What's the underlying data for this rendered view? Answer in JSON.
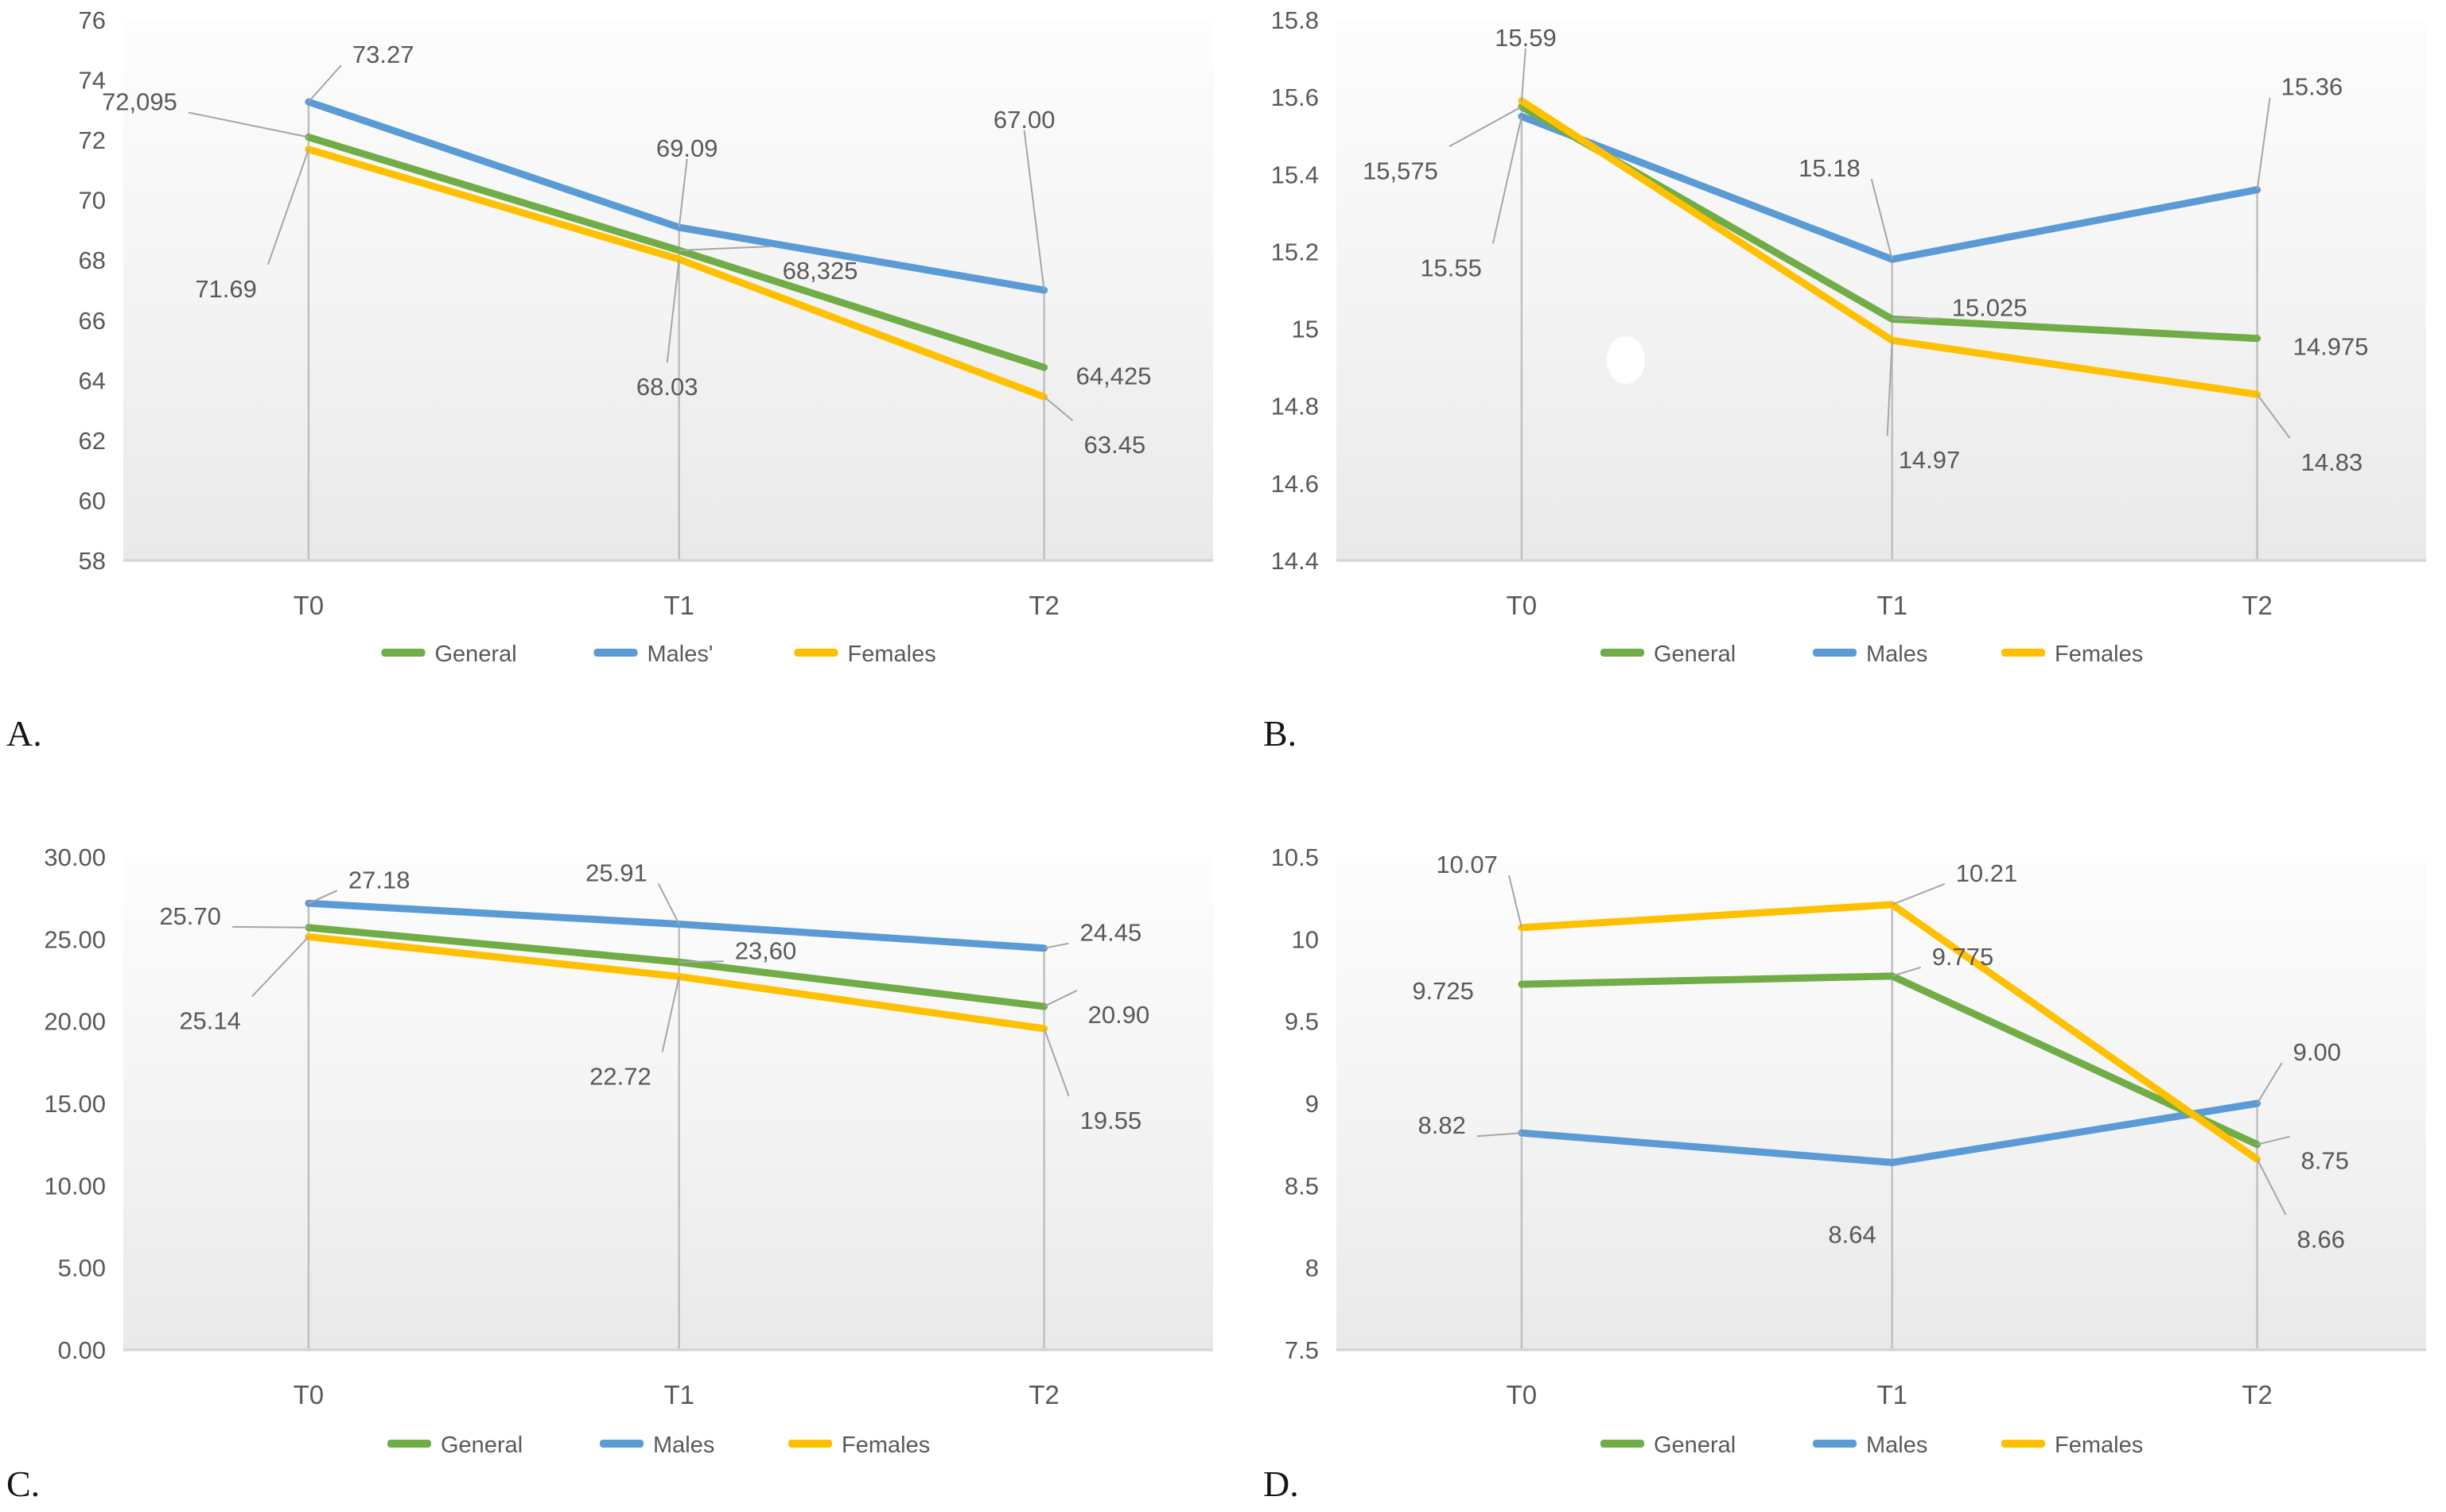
{
  "colors": {
    "general": "#70AD47",
    "males": "#5B9BD5",
    "females": "#FFC000",
    "axis_line": "#D6D6D6",
    "drop_line": "#BFBFBF",
    "leader_line": "#A6A6A6",
    "chart_text": "#595959",
    "caption_text": "#161616",
    "plot_fill_top": "#FDFDFD",
    "plot_fill_bottom": "#E9E9E9",
    "artifact_dot": "#FFFFFF"
  },
  "chart_data": [
    {
      "id": "A",
      "caption": "A.",
      "type": "line",
      "categories": [
        "T0",
        "T1",
        "T2"
      ],
      "y_ticks": [
        "76",
        "74",
        "72",
        "70",
        "68",
        "66",
        "64",
        "62",
        "60",
        "58"
      ],
      "ylim": [
        58,
        76
      ],
      "grid": false,
      "legend_position": "bottom",
      "legend": [
        "General",
        "Males'",
        "Females"
      ],
      "series": [
        {
          "name": "General",
          "color": "general",
          "values": [
            72.095,
            68.325,
            64.425
          ],
          "labels": [
            "72,095",
            "68,325",
            "64,425"
          ]
        },
        {
          "name": "Males",
          "color": "males",
          "values": [
            73.27,
            69.09,
            67.0
          ],
          "labels": [
            "73.27",
            "69.09",
            "67.00"
          ]
        },
        {
          "name": "Females",
          "color": "females",
          "values": [
            71.69,
            68.03,
            63.45
          ],
          "labels": [
            "71.69",
            "68.03",
            "63.45"
          ]
        }
      ]
    },
    {
      "id": "B",
      "caption": "B.",
      "type": "line",
      "categories": [
        "T0",
        "T1",
        "T2"
      ],
      "y_ticks": [
        "15.8",
        "15.6",
        "15.4",
        "15.2",
        "15",
        "14.8",
        "14.6",
        "14.4"
      ],
      "ylim": [
        14.4,
        15.8
      ],
      "grid": false,
      "legend_position": "bottom",
      "legend": [
        "General",
        "Males",
        "Females"
      ],
      "artifact": "white-dot",
      "series": [
        {
          "name": "General",
          "color": "general",
          "values": [
            15.575,
            15.025,
            14.975
          ],
          "labels": [
            "15,575",
            "15.025",
            "14.975"
          ]
        },
        {
          "name": "Males",
          "color": "males",
          "values": [
            15.55,
            15.18,
            15.36
          ],
          "labels": [
            "15.55",
            "15.18",
            "15.36"
          ]
        },
        {
          "name": "Females",
          "color": "females",
          "values": [
            15.59,
            14.97,
            14.83
          ],
          "labels": [
            "15.59",
            "14.97",
            "14.83"
          ]
        }
      ]
    },
    {
      "id": "C",
      "caption": "C.",
      "type": "line",
      "categories": [
        "T0",
        "T1",
        "T2"
      ],
      "y_ticks": [
        "30.00",
        "25.00",
        "20.00",
        "15.00",
        "10.00",
        "5.00",
        "0.00"
      ],
      "ylim": [
        0,
        30
      ],
      "grid": false,
      "legend_position": "bottom",
      "legend": [
        "General",
        "Males",
        "Females"
      ],
      "series": [
        {
          "name": "General",
          "color": "general",
          "values": [
            25.7,
            23.6,
            20.9
          ],
          "labels": [
            "25.70",
            "23,60",
            "20.90"
          ]
        },
        {
          "name": "Males",
          "color": "males",
          "values": [
            27.18,
            25.91,
            24.45
          ],
          "labels": [
            "27.18",
            "25.91",
            "24.45"
          ]
        },
        {
          "name": "Females",
          "color": "females",
          "values": [
            25.14,
            22.72,
            19.55
          ],
          "labels": [
            "25.14",
            "22.72",
            "19.55"
          ]
        }
      ]
    },
    {
      "id": "D",
      "caption": "D.",
      "type": "line",
      "categories": [
        "T0",
        "T1",
        "T2"
      ],
      "y_ticks": [
        "10.5",
        "10",
        "9.5",
        "9",
        "8.5",
        "8",
        "7.5"
      ],
      "ylim": [
        7.5,
        10.5
      ],
      "grid": false,
      "legend_position": "bottom",
      "legend": [
        "General",
        "Males",
        "Females"
      ],
      "series": [
        {
          "name": "General",
          "color": "general",
          "values": [
            9.725,
            9.775,
            8.75
          ],
          "labels": [
            "9.725",
            "9.775",
            "8.75"
          ]
        },
        {
          "name": "Males",
          "color": "males",
          "values": [
            8.82,
            8.64,
            9.0
          ],
          "labels": [
            "8.82",
            "8.64",
            "9.00"
          ]
        },
        {
          "name": "Females",
          "color": "females",
          "values": [
            10.07,
            10.21,
            8.66
          ],
          "labels": [
            "10.07",
            "10.21",
            "8.66"
          ]
        }
      ]
    }
  ]
}
